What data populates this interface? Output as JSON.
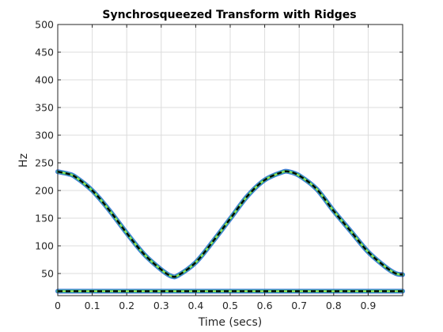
{
  "chart_data": {
    "type": "line",
    "title": "Synchrosqueezed Transform with Ridges",
    "xlabel": "Time (secs)",
    "ylabel": "Hz",
    "xlim": [
      0,
      1
    ],
    "ylim": [
      10,
      500
    ],
    "xticks": [
      "0",
      "0.1",
      "0.2",
      "0.3",
      "0.4",
      "0.5",
      "0.6",
      "0.7",
      "0.8",
      "0.9"
    ],
    "yticks": [
      "50",
      "100",
      "150",
      "200",
      "250",
      "300",
      "350",
      "400",
      "450",
      "500"
    ],
    "grid": true,
    "colors": {
      "ridge": "#000000",
      "transform_edge": "#2c6bd6",
      "transform_core": "#38c97a",
      "transform_highlight": "#e8e83a"
    },
    "series": [
      {
        "style": "dashed",
        "x": [
          0,
          0.03,
          0.05,
          0.1,
          0.15,
          0.2,
          0.25,
          0.3,
          0.33,
          0.35,
          0.4,
          0.45,
          0.5,
          0.55,
          0.6,
          0.65,
          0.67,
          0.7,
          0.75,
          0.8,
          0.85,
          0.9,
          0.95,
          0.98,
          1.0
        ],
        "values": [
          234,
          230,
          225,
          200,
          164,
          123,
          85,
          57,
          45,
          47,
          70,
          108,
          149,
          190,
          219,
          233,
          234,
          227,
          203,
          163,
          126,
          89,
          62,
          50,
          48
        ]
      },
      {
        "style": "dashed",
        "x": [
          0,
          1
        ],
        "values": [
          18,
          18
        ]
      }
    ]
  }
}
